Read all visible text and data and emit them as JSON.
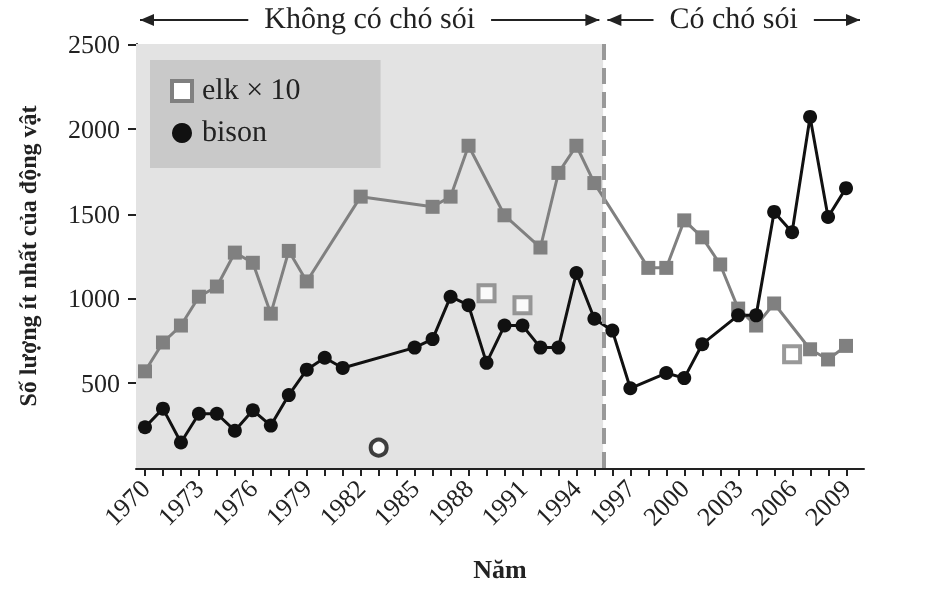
{
  "chart_data": {
    "type": "line",
    "xlabel": "Năm",
    "ylabel": "Số lượng ít nhất của động vật",
    "xlim": [
      1969.5,
      2010
    ],
    "ylim": [
      0,
      2500
    ],
    "yticks": [
      500,
      1000,
      1500,
      2000,
      2500
    ],
    "xticks": [
      1970,
      {
        "value": 1971,
        "label": null
      },
      {
        "value": 1972,
        "label": null
      },
      1973,
      {
        "value": 1974,
        "label": null
      },
      {
        "value": 1975,
        "label": null
      },
      1976,
      {
        "value": 1977,
        "label": null
      },
      {
        "value": 1978,
        "label": null
      },
      1979,
      {
        "value": 1980,
        "label": null
      },
      {
        "value": 1981,
        "label": null
      },
      1982,
      {
        "value": 1983,
        "label": null
      },
      {
        "value": 1984,
        "label": null
      },
      1985,
      {
        "value": 1986,
        "label": null
      },
      {
        "value": 1987,
        "label": null
      },
      1988,
      {
        "value": 1989,
        "label": null
      },
      {
        "value": 1990,
        "label": null
      },
      1991,
      {
        "value": 1992,
        "label": null
      },
      {
        "value": 1993,
        "label": null
      },
      1994,
      {
        "value": 1995,
        "label": null
      },
      {
        "value": 1996,
        "label": null
      },
      1997,
      {
        "value": 1998,
        "label": null
      },
      {
        "value": 1999,
        "label": null
      },
      2000,
      {
        "value": 2001,
        "label": null
      },
      {
        "value": 2002,
        "label": null
      },
      2003,
      {
        "value": 2004,
        "label": null
      },
      {
        "value": 2005,
        "label": null
      },
      2006,
      {
        "value": 2007,
        "label": null
      },
      {
        "value": 2008,
        "label": null
      },
      2009
    ],
    "legend": "top left",
    "bands": [
      {
        "axis": "x",
        "from": 1969.5,
        "to": 1995.5,
        "label": "Không có chó sói",
        "color": "#e3e3e3"
      },
      {
        "axis": "x",
        "from": 1995.5,
        "to": 2010,
        "label": "Có chó sói",
        "color": "#ffffff"
      }
    ],
    "ref_lines": [
      {
        "axis": "x",
        "value": 1995.5,
        "label": null,
        "color": "#999999",
        "line_style": "dashed"
      }
    ],
    "series": [
      {
        "name": "elk × 10",
        "color": "#808080",
        "marker": "square",
        "x": [
          1970,
          1971,
          1972,
          1973,
          1974,
          1975,
          1976,
          1977,
          1978,
          1979,
          1982,
          1986,
          1987,
          1988,
          1990,
          1992,
          1993,
          1994,
          1995,
          1998,
          1999,
          2000,
          2001,
          2002,
          2003,
          2004,
          2005,
          2007,
          2008,
          2009
        ],
        "values": [
          570,
          740,
          840,
          1010,
          1070,
          1270,
          1210,
          910,
          1280,
          1100,
          1600,
          1540,
          1600,
          1900,
          1490,
          1300,
          1740,
          1900,
          1680,
          1180,
          1180,
          1460,
          1360,
          1200,
          940,
          840,
          970,
          700,
          640,
          720
        ]
      },
      {
        "name": "bison",
        "color": "#111111",
        "marker": "circle",
        "x": [
          1970,
          1971,
          1972,
          1973,
          1974,
          1975,
          1976,
          1977,
          1978,
          1979,
          1980,
          1981,
          1985,
          1986,
          1987,
          1988,
          1989,
          1990,
          1991,
          1992,
          1993,
          1994,
          1995,
          1996,
          1997,
          1999,
          2000,
          2001,
          2003,
          2004,
          2005,
          2006,
          2007,
          2008,
          2009
        ],
        "values": [
          240,
          350,
          150,
          320,
          320,
          220,
          340,
          250,
          430,
          580,
          650,
          590,
          710,
          760,
          1010,
          960,
          620,
          840,
          840,
          710,
          710,
          1150,
          880,
          810,
          470,
          560,
          530,
          730,
          900,
          900,
          1510,
          1390,
          2070,
          1480,
          1650
        ]
      },
      {
        "type": "scatter",
        "color": "#808080",
        "marker": "square",
        "x": [
          1989,
          1991,
          2006
        ],
        "values": [
          1030,
          960,
          670
        ]
      },
      {
        "type": "scatter",
        "color": "#111111",
        "marker": "circle",
        "x": [
          1983
        ],
        "values": [
          120
        ]
      }
    ]
  }
}
